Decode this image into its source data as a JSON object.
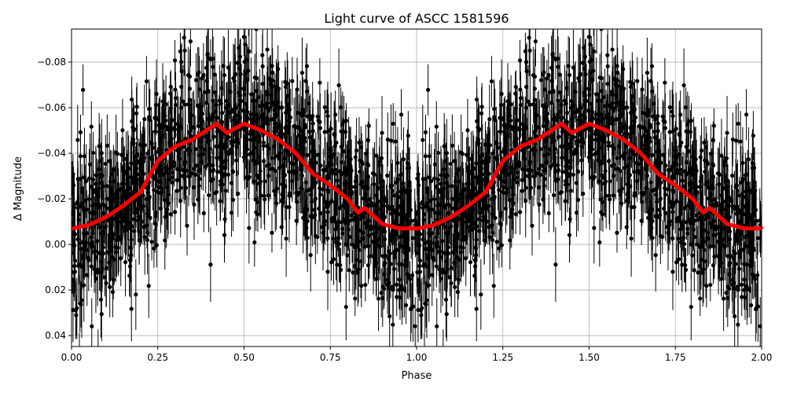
{
  "chart_data": {
    "type": "scatter",
    "title": "Light curve of ASCC 1581596",
    "xlabel": "Phase",
    "ylabel": "Δ Magnitude",
    "xlim": [
      0,
      2
    ],
    "ylim": [
      0.0448,
      -0.0945
    ],
    "y_inverted": true,
    "grid": true,
    "x_ticks": [
      "0.00",
      "0.25",
      "0.50",
      "0.75",
      "1.00",
      "1.25",
      "1.50",
      "1.75",
      "2.00"
    ],
    "y_ticks": [
      "−0.08",
      "−0.06",
      "−0.04",
      "−0.02",
      "0.00",
      "0.02",
      "0.04"
    ],
    "x_tick_values": [
      0,
      0.25,
      0.5,
      0.75,
      1,
      1.25,
      1.5,
      1.75,
      2
    ],
    "y_tick_values": [
      -0.08,
      -0.06,
      -0.04,
      -0.02,
      0,
      0.02,
      0.04
    ],
    "observations": {
      "style": "black points with error bars",
      "color": "#000000",
      "scatter_sigma": 0.018,
      "typical_error": 0.012,
      "count_per_cycle": 1400
    },
    "binned_curve": {
      "color": "#ff0000",
      "phase": [
        0,
        0.05,
        0.1,
        0.15,
        0.2,
        0.25,
        0.3,
        0.35,
        0.4,
        0.42,
        0.45,
        0.5,
        0.55,
        0.6,
        0.65,
        0.7,
        0.75,
        0.8,
        0.83,
        0.85,
        0.9,
        0.95,
        1.0
      ],
      "mag": [
        -0.0069,
        -0.0085,
        -0.012,
        -0.017,
        -0.023,
        -0.0366,
        -0.043,
        -0.046,
        -0.051,
        -0.053,
        -0.049,
        -0.053,
        -0.05,
        -0.046,
        -0.04,
        -0.031,
        -0.026,
        -0.02,
        -0.014,
        -0.016,
        -0.009,
        -0.007,
        -0.007
      ],
      "repeats_every": 1
    }
  }
}
